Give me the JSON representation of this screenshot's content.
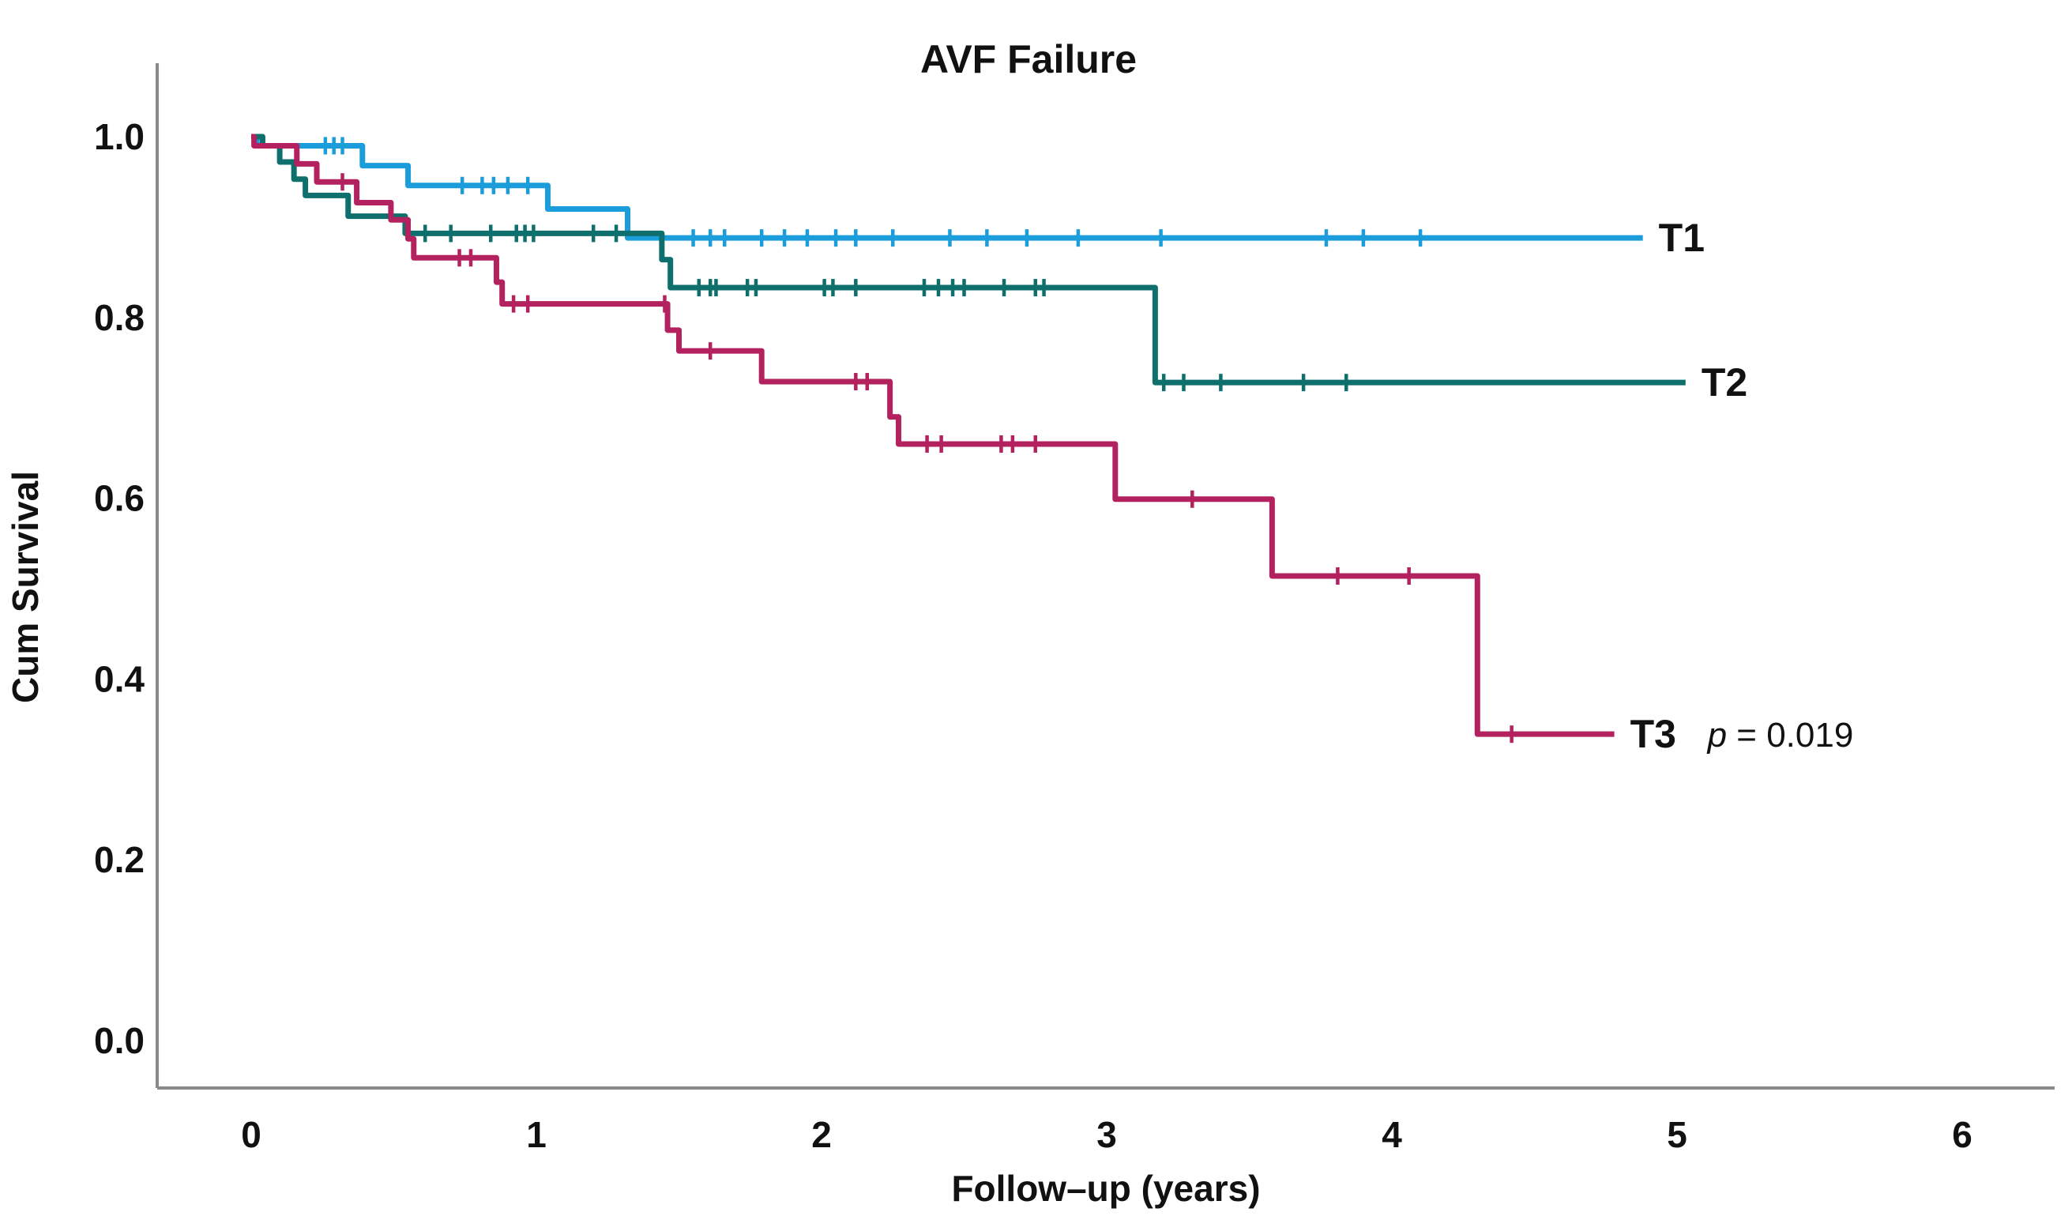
{
  "title": "AVF Failure",
  "axes": {
    "x_label": "Follow–up (years)",
    "y_label": "Cum Survival",
    "x_tick_labels": [
      "0",
      "1",
      "2",
      "3",
      "4",
      "5",
      "6"
    ],
    "y_tick_labels": [
      "1.0",
      "0.8",
      "0.6",
      "0.4",
      "0.2",
      "0.0"
    ]
  },
  "chart_data": {
    "type": "line",
    "subtype": "kaplan-meier-step-survival",
    "title": "AVF Failure",
    "xlabel": "Follow–up (years)",
    "ylabel": "Cum Survival",
    "xlim": [
      0,
      6
    ],
    "ylim": [
      0.0,
      1.0
    ],
    "x_ticks": [
      0,
      1,
      2,
      3,
      4,
      5,
      6
    ],
    "y_ticks": [
      "1.0",
      "0.8",
      "0.6",
      "0.4",
      "0.2",
      "0.0"
    ],
    "grid": false,
    "legend_position": "labels-at-line-end",
    "p_value_text": "p = 0.019",
    "series": [
      {
        "name": "T1",
        "color": "#1b9ddb",
        "end": 4.88,
        "points": [
          [
            0,
            1.0
          ],
          [
            0.02,
            0.99
          ],
          [
            0.39,
            0.968
          ],
          [
            0.55,
            0.946
          ],
          [
            1.04,
            0.92
          ],
          [
            1.32,
            0.888
          ]
        ],
        "censors": [
          [
            0.26,
            0.99
          ],
          [
            0.29,
            0.99
          ],
          [
            0.32,
            0.99
          ],
          [
            0.74,
            0.946
          ],
          [
            0.81,
            0.946
          ],
          [
            0.85,
            0.946
          ],
          [
            0.9,
            0.946
          ],
          [
            0.97,
            0.946
          ],
          [
            1.55,
            0.888
          ],
          [
            1.61,
            0.888
          ],
          [
            1.66,
            0.888
          ],
          [
            1.79,
            0.888
          ],
          [
            1.87,
            0.888
          ],
          [
            1.95,
            0.888
          ],
          [
            2.05,
            0.888
          ],
          [
            2.12,
            0.888
          ],
          [
            2.25,
            0.888
          ],
          [
            2.45,
            0.888
          ],
          [
            2.58,
            0.888
          ],
          [
            2.72,
            0.888
          ],
          [
            2.9,
            0.888
          ],
          [
            3.19,
            0.888
          ],
          [
            3.77,
            0.888
          ],
          [
            3.9,
            0.888
          ],
          [
            4.1,
            0.888
          ]
        ]
      },
      {
        "name": "T2",
        "color": "#0f6f6c",
        "end": 5.03,
        "points": [
          [
            0,
            1.0
          ],
          [
            0.04,
            0.99
          ],
          [
            0.1,
            0.972
          ],
          [
            0.15,
            0.953
          ],
          [
            0.19,
            0.935
          ],
          [
            0.34,
            0.912
          ],
          [
            0.54,
            0.893
          ],
          [
            1.44,
            0.864
          ],
          [
            1.47,
            0.833
          ],
          [
            3.17,
            0.728
          ]
        ],
        "censors": [
          [
            0.61,
            0.893
          ],
          [
            0.7,
            0.893
          ],
          [
            0.84,
            0.893
          ],
          [
            0.93,
            0.893
          ],
          [
            0.96,
            0.893
          ],
          [
            0.99,
            0.893
          ],
          [
            1.2,
            0.893
          ],
          [
            1.28,
            0.893
          ],
          [
            1.57,
            0.833
          ],
          [
            1.61,
            0.833
          ],
          [
            1.63,
            0.833
          ],
          [
            1.74,
            0.833
          ],
          [
            1.77,
            0.833
          ],
          [
            2.01,
            0.833
          ],
          [
            2.04,
            0.833
          ],
          [
            2.12,
            0.833
          ],
          [
            2.36,
            0.833
          ],
          [
            2.41,
            0.833
          ],
          [
            2.46,
            0.833
          ],
          [
            2.5,
            0.833
          ],
          [
            2.64,
            0.833
          ],
          [
            2.75,
            0.833
          ],
          [
            2.78,
            0.833
          ],
          [
            3.2,
            0.728
          ],
          [
            3.27,
            0.728
          ],
          [
            3.4,
            0.728
          ],
          [
            3.69,
            0.728
          ],
          [
            3.84,
            0.728
          ]
        ]
      },
      {
        "name": "T3",
        "color": "#b3215f",
        "end": 4.78,
        "annotation": {
          "italic": "p",
          "rest": " = 0.019"
        },
        "points": [
          [
            0,
            1.0
          ],
          [
            0.01,
            0.99
          ],
          [
            0.16,
            0.97
          ],
          [
            0.23,
            0.95
          ],
          [
            0.37,
            0.927
          ],
          [
            0.49,
            0.908
          ],
          [
            0.55,
            0.887
          ],
          [
            0.57,
            0.866
          ],
          [
            0.86,
            0.839
          ],
          [
            0.88,
            0.815
          ],
          [
            1.46,
            0.786
          ],
          [
            1.5,
            0.763
          ],
          [
            1.79,
            0.729
          ],
          [
            2.24,
            0.69
          ],
          [
            2.27,
            0.66
          ],
          [
            3.03,
            0.599
          ],
          [
            3.58,
            0.514
          ],
          [
            4.3,
            0.339
          ]
        ],
        "censors": [
          [
            0.32,
            0.95
          ],
          [
            0.73,
            0.866
          ],
          [
            0.77,
            0.866
          ],
          [
            0.92,
            0.815
          ],
          [
            0.97,
            0.815
          ],
          [
            1.45,
            0.815
          ],
          [
            1.61,
            0.763
          ],
          [
            2.12,
            0.729
          ],
          [
            2.16,
            0.729
          ],
          [
            2.37,
            0.66
          ],
          [
            2.42,
            0.66
          ],
          [
            2.63,
            0.66
          ],
          [
            2.67,
            0.66
          ],
          [
            2.75,
            0.66
          ],
          [
            3.3,
            0.599
          ],
          [
            3.81,
            0.514
          ],
          [
            4.06,
            0.514
          ],
          [
            4.42,
            0.339
          ]
        ]
      }
    ]
  }
}
